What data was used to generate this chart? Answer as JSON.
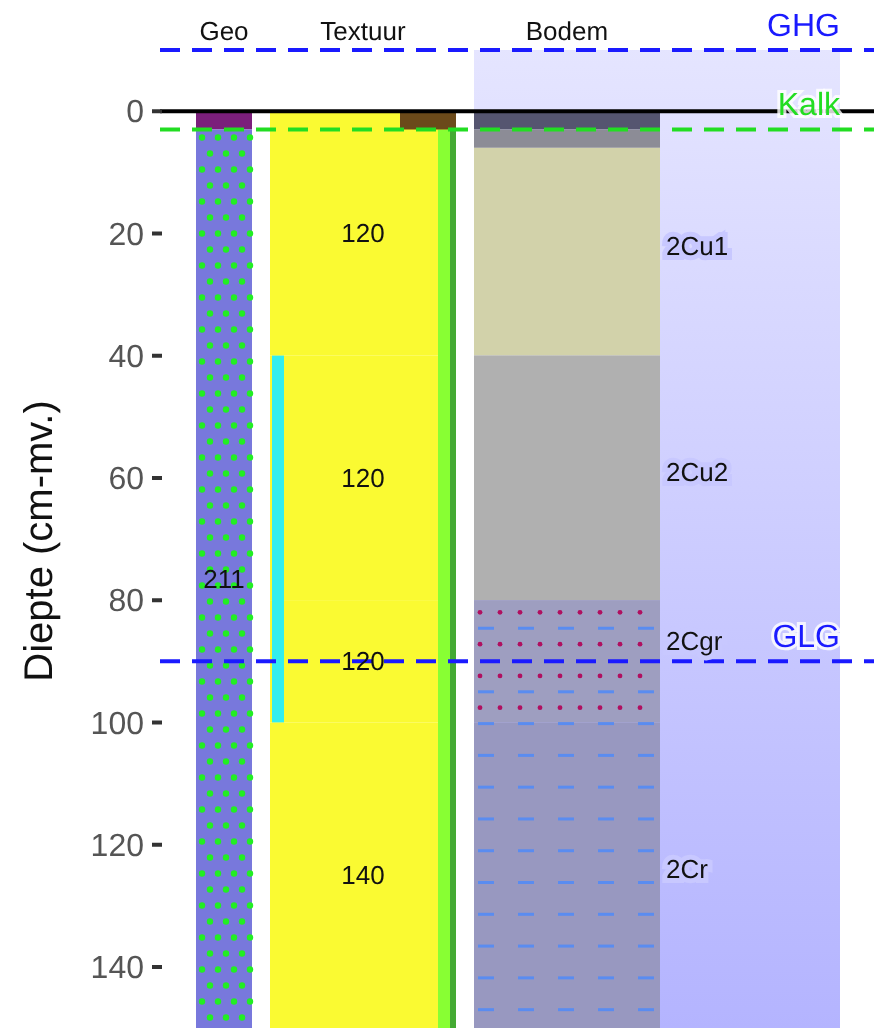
{
  "chart_data": {
    "type": "bar",
    "stacked": true,
    "categories": [
      "Geo",
      "Textuur",
      "Bodem"
    ],
    "ylabel": "Diepte (cm-mv.)",
    "ylim": [
      150,
      -10
    ],
    "yticks": [
      0,
      20,
      40,
      60,
      80,
      100,
      120,
      140
    ],
    "grid": false,
    "series": [
      {
        "colors": [
          "#7b1f7b",
          "#fafa32",
          "#555570"
        ],
        "values": [
          3,
          40,
          3
        ]
      },
      {
        "colors": [
          "#7878dc",
          "#fafa32",
          "#8c8c96"
        ],
        "values": [
          147,
          40,
          3
        ]
      },
      {
        "colors": [
          null,
          "#fafa32",
          "#d2d2aa"
        ],
        "values": [
          null,
          20,
          34
        ]
      },
      {
        "colors": [
          null,
          "#fafa32",
          "#b0b0b0"
        ],
        "values": [
          null,
          50,
          40
        ]
      },
      {
        "colors": [
          null,
          null,
          "#9e9ec0"
        ],
        "values": [
          null,
          null,
          20
        ]
      },
      {
        "colors": [
          null,
          null,
          "#9898c0"
        ],
        "values": [
          null,
          null,
          50
        ]
      }
    ],
    "annotations": [
      "211",
      "120",
      "120",
      "120",
      "140",
      "2Cu1",
      "2Cu2",
      "2Cgr",
      "2Cr"
    ],
    "bands": [
      {
        "axis": "y",
        "from": -10,
        "to": 150,
        "color": "#b4b4ff"
      }
    ],
    "ref_lines": [
      {
        "axis": "y",
        "value": 0,
        "label": null,
        "color": "#000000",
        "line_style": "solid"
      },
      {
        "axis": "y",
        "value": -10,
        "label": "GHG",
        "color": "#1a1aff",
        "line_style": "dashed"
      },
      {
        "axis": "y",
        "value": 3,
        "label": "Kalk",
        "color": "#22dd22",
        "line_style": "dashed"
      },
      {
        "axis": "y",
        "value": 90,
        "label": "GLG",
        "color": "#1a1aff",
        "line_style": "dashed"
      }
    ]
  }
}
